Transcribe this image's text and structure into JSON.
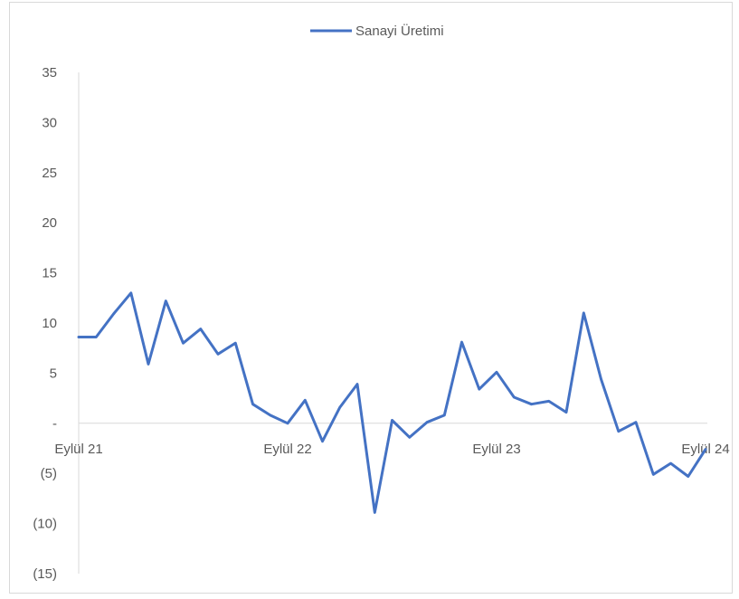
{
  "chart_data": {
    "type": "line",
    "title": "",
    "xlabel": "",
    "ylabel": "",
    "ylim": [
      -15,
      35
    ],
    "y_ticks": [
      35,
      30,
      25,
      20,
      15,
      10,
      5,
      0,
      -5,
      -10,
      -15
    ],
    "y_tick_labels": [
      "35",
      "30",
      "25",
      "20",
      "15",
      "10",
      "5",
      "-",
      "(5)",
      "(10)",
      "(15)"
    ],
    "x_tick_labels": [
      {
        "label": "Eylül 21",
        "index": 0
      },
      {
        "label": "Eylül 22",
        "index": 12
      },
      {
        "label": "Eylül 23",
        "index": 24
      },
      {
        "label": "Eylül 24",
        "index": 36
      }
    ],
    "grid": false,
    "legend_position": "top-center",
    "series": [
      {
        "name": "Sanayi Üretimi",
        "color": "#4472c4",
        "values": [
          8.6,
          8.6,
          10.9,
          13.0,
          5.9,
          12.2,
          8.0,
          9.4,
          6.9,
          8.0,
          1.9,
          0.8,
          0.0,
          2.3,
          -1.8,
          1.6,
          3.9,
          -8.9,
          0.3,
          -1.4,
          0.1,
          0.8,
          8.1,
          3.4,
          5.1,
          2.6,
          1.9,
          2.2,
          1.1,
          11.0,
          4.4,
          -0.8,
          0.1,
          -5.1,
          -4.0,
          -5.3,
          -2.6
        ]
      }
    ]
  }
}
